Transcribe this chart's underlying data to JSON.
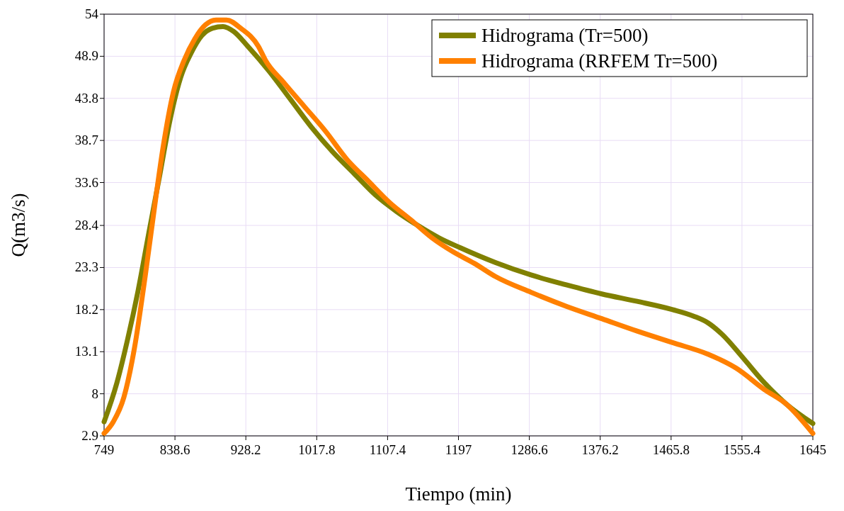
{
  "chart_data": {
    "type": "line",
    "xlabel": "Tiempo (min)",
    "ylabel": "Q(m3/s)",
    "xlim": [
      749,
      1645
    ],
    "xticks": [
      749,
      838.6,
      928.2,
      1017.8,
      1107.4,
      1197,
      1286.6,
      1376.2,
      1465.8,
      1555.4,
      1645
    ],
    "ylim": [
      2.9,
      54
    ],
    "yticks": [
      2.9,
      8,
      13.1,
      18.2,
      23.3,
      28.4,
      33.6,
      38.7,
      43.8,
      48.9,
      54
    ],
    "grid": true,
    "legend": "top right",
    "line_style": "solid",
    "marker": "none",
    "series": [
      {
        "name": "Hidrograma (Tr=500)",
        "color": "#808000",
        "x": [
          749,
          765.1,
          778.5,
          792,
          805.4,
          818.8,
          832.2,
          845.7,
          859.1,
          872.5,
          885.9,
          899.4,
          912.8,
          930.7,
          957.5,
          984.4,
          1011.2,
          1038.1,
          1064.9,
          1091.8,
          1118.6,
          1145.5,
          1172.3,
          1199.2,
          1243.9,
          1288.7,
          1333.4,
          1378.2,
          1422.9,
          1467.7,
          1494.5,
          1512.4,
          1530.3,
          1557.2,
          1584,
          1610.9,
          1645
        ],
        "values": [
          4.6,
          9.3,
          14.5,
          20.5,
          27.4,
          34.2,
          41.1,
          46.3,
          49.3,
          51.4,
          52.3,
          52.5,
          51.9,
          50.1,
          47.1,
          43.7,
          40.3,
          37.3,
          34.7,
          32.1,
          30.1,
          28.4,
          26.9,
          25.7,
          23.9,
          22.4,
          21.2,
          20.1,
          19.2,
          18.2,
          17.4,
          16.6,
          15.2,
          12.3,
          9.3,
          6.8,
          4.4
        ]
      },
      {
        "name": "Hidrograma (RRFEM Tr=500)",
        "color": "#ff8000",
        "x": [
          749,
          760.6,
          774.1,
          787.5,
          800.9,
          814.3,
          823.3,
          836.7,
          850.1,
          863.6,
          877,
          890.4,
          903.8,
          921.7,
          944.1,
          953.1,
          975.4,
          1002.3,
          1029.1,
          1056,
          1082.8,
          1109.7,
          1136.5,
          1163.4,
          1190.2,
          1217.1,
          1243.9,
          1288.7,
          1333.4,
          1378.2,
          1422.9,
          1467.7,
          1512.4,
          1548.2,
          1584,
          1610.9,
          1645
        ],
        "values": [
          3.2,
          4.6,
          7.6,
          13.6,
          22.2,
          31.7,
          37.7,
          44.6,
          48.4,
          51,
          52.7,
          53.3,
          53.3,
          52.3,
          50.1,
          48.4,
          45.8,
          42.8,
          39.8,
          36.4,
          33.8,
          31.2,
          29.1,
          26.9,
          25.2,
          23.8,
          22.2,
          20.3,
          18.6,
          17.1,
          15.6,
          14.2,
          12.8,
          11.1,
          8.5,
          6.8,
          3.2
        ]
      }
    ]
  }
}
